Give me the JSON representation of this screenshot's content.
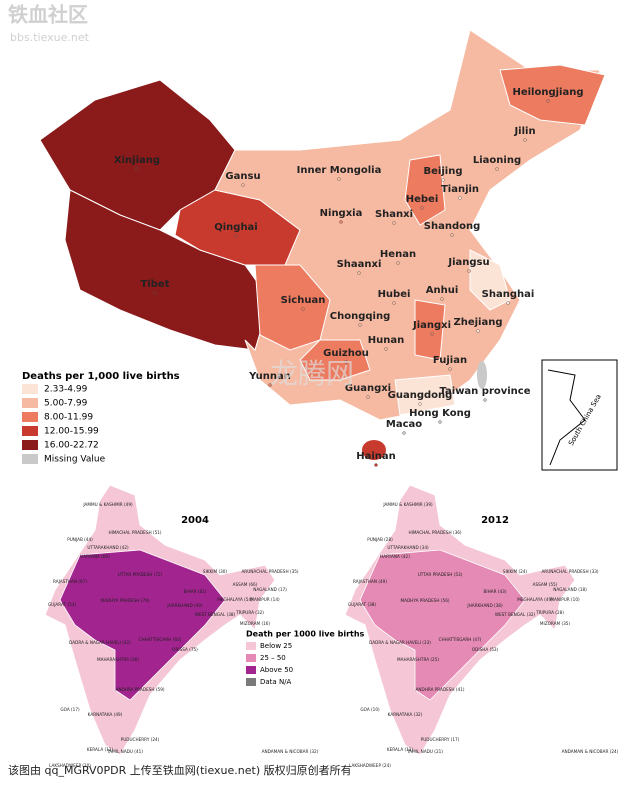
{
  "watermark": {
    "site": "铁血社区",
    "url": "bbs.tiexue.net",
    "overlay": "龙腾网"
  },
  "china_map": {
    "provinces": [
      {
        "name": "Xinjiang",
        "color": "#8b1a1a"
      },
      {
        "name": "Tibet",
        "color": "#8b1a1a"
      },
      {
        "name": "Qinghai",
        "color": "#c83a2e"
      },
      {
        "name": "Gansu",
        "color": "#f6b9a1"
      },
      {
        "name": "Inner Mongolia",
        "color": "#f6b9a1"
      },
      {
        "name": "Heilongjiang",
        "color": "#ec7b5f"
      },
      {
        "name": "Jilin",
        "color": "#f6b9a1"
      },
      {
        "name": "Liaoning",
        "color": "#f6b9a1"
      },
      {
        "name": "Beijing",
        "color": "#fbe3d6"
      },
      {
        "name": "Tianjin",
        "color": "#fbe3d6"
      },
      {
        "name": "Hebei",
        "color": "#ec7b5f"
      },
      {
        "name": "Ningxia",
        "color": "#ec7b5f"
      },
      {
        "name": "Shanxi",
        "color": "#f6b9a1"
      },
      {
        "name": "Shandong",
        "color": "#f6b9a1"
      },
      {
        "name": "Shaanxi",
        "color": "#f6b9a1"
      },
      {
        "name": "Henan",
        "color": "#f6b9a1"
      },
      {
        "name": "Jiangsu",
        "color": "#f6b9a1"
      },
      {
        "name": "Sichuan",
        "color": "#ec7b5f"
      },
      {
        "name": "Hubei",
        "color": "#f6b9a1"
      },
      {
        "name": "Anhui",
        "color": "#f6b9a1"
      },
      {
        "name": "Shanghai",
        "color": "#fbe3d6"
      },
      {
        "name": "Chongqing",
        "color": "#f6b9a1"
      },
      {
        "name": "Zhejiang",
        "color": "#fbe3d6"
      },
      {
        "name": "Hunan",
        "color": "#f6b9a1"
      },
      {
        "name": "Jiangxi",
        "color": "#ec7b5f"
      },
      {
        "name": "Guizhou",
        "color": "#ec7b5f"
      },
      {
        "name": "Fujian",
        "color": "#f6b9a1"
      },
      {
        "name": "Yunnan",
        "color": "#ec7b5f"
      },
      {
        "name": "Guangxi",
        "color": "#f6b9a1"
      },
      {
        "name": "Guangdong",
        "color": "#fbe3d6"
      },
      {
        "name": "Taiwan province",
        "color": "#c9c9c9"
      },
      {
        "name": "Hong Kong",
        "color": "#c9c9c9"
      },
      {
        "name": "Macao",
        "color": "#c9c9c9"
      },
      {
        "name": "Hainan",
        "color": "#c83a2e"
      }
    ],
    "inset_label": "South China Sea",
    "legend": {
      "title": "Deaths per 1,000 live births",
      "items": [
        {
          "label": "2.33-4.99",
          "color": "#fbe3d6"
        },
        {
          "label": "5.00-7.99",
          "color": "#f6b9a1"
        },
        {
          "label": "8.00-11.99",
          "color": "#ec7b5f"
        },
        {
          "label": "12.00-15.99",
          "color": "#c83a2e"
        },
        {
          "label": "16.00-22.72",
          "color": "#8b1a1a"
        },
        {
          "label": "Missing Value",
          "color": "#c9c9c9"
        }
      ]
    }
  },
  "india_maps": {
    "panels": [
      {
        "year": "2004",
        "states": [
          "JAMMU & KASHMIR (49)",
          "HIMACHAL PRADESH (51)",
          "PUNJAB (44)",
          "UTTARAKHAND (42)",
          "HARYANA (60)",
          "RAJASTHAN (67)",
          "UTTAR PRADESH (72)",
          "BIHAR (61)",
          "SIKKIM (30)",
          "ARUNACHAL PRADESH (35)",
          "ASSAM (66)",
          "NAGALAND (17)",
          "MEGHALAYA (54)",
          "MANIPUR (14)",
          "JHARKHAND (49)",
          "WEST BENGAL (38)",
          "TRIPURA (32)",
          "MIZORAM (16)",
          "MADHYA PRADESH (79)",
          "GUJARAT (53)",
          "CHHATTISGARH (60)",
          "ORISSA (75)",
          "DADRA & NAGAR HAVELI (42)",
          "MAHARASHTRA (36)",
          "ANDHRA PRADESH (59)",
          "GOA (17)",
          "KARNATAKA (49)",
          "PUDUCHERRY (24)",
          "KERALA (12)",
          "TAMIL NADU (41)",
          "ANDAMAN & NICOBAR (32)",
          "LAKSHADWEEP (20)"
        ]
      },
      {
        "year": "2012",
        "states": [
          "JAMMU & KASHMIR (39)",
          "HIMACHAL PRADESH (36)",
          "PUNJAB (28)",
          "UTTARAKHAND (34)",
          "HARYANA (42)",
          "RAJASTHAN (49)",
          "UTTAR PRADESH (53)",
          "BIHAR (43)",
          "SIKKIM (24)",
          "ARUNACHAL PRADESH (33)",
          "ASSAM (55)",
          "NAGALAND (18)",
          "MEGHALAYA (49)",
          "MANIPUR (10)",
          "JHARKHAND (38)",
          "WEST BENGAL (32)",
          "TRIPURA (28)",
          "MIZORAM (35)",
          "MADHYA PRADESH (56)",
          "GUJARAT (38)",
          "CHHATTISGARH (47)",
          "ODISHA (53)",
          "DADRA & NAGAR HAVELI (33)",
          "MAHARASHTRA (25)",
          "ANDHRA PRADESH (41)",
          "GOA (10)",
          "KARNATAKA (32)",
          "PUDUCHERRY (17)",
          "KERALA (12)",
          "TAMIL NADU (21)",
          "ANDAMAN & NICOBAR (24)",
          "LAKSHADWEEP (24)"
        ]
      }
    ],
    "legend": {
      "title": "Death per 1000 live births",
      "items": [
        {
          "label": "Below 25",
          "color": "#f4c6d6"
        },
        {
          "label": "25 – 50",
          "color": "#e48ab4"
        },
        {
          "label": "Above 50",
          "color": "#a2248f"
        },
        {
          "label": "Data N/A",
          "color": "#7a7a7a"
        }
      ]
    }
  },
  "footer": "该图由 qq_MGRV0PDR 上传至铁血网(tiexue.net) 版权归原创者所有"
}
